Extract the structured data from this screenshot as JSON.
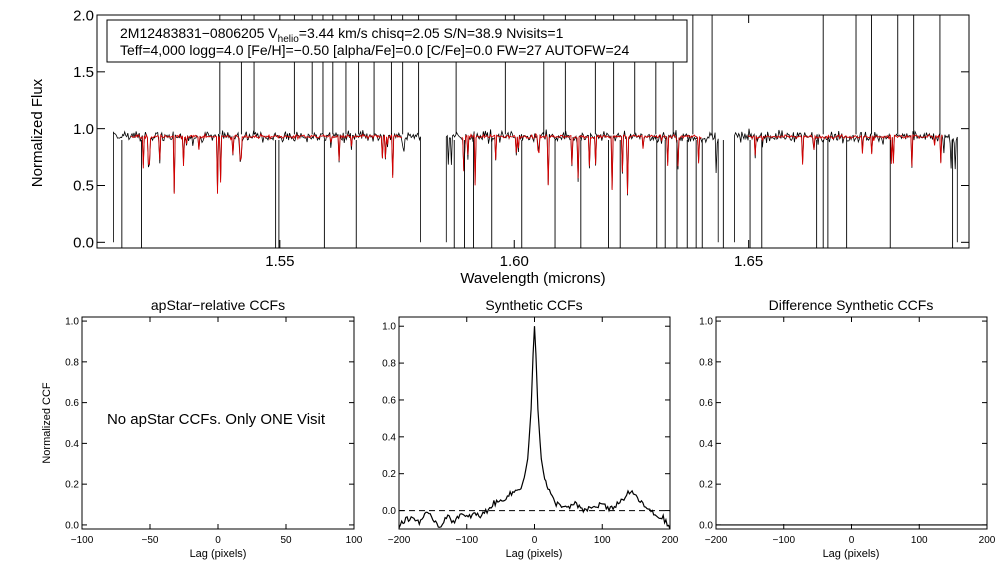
{
  "colors": {
    "observed": "#000000",
    "model": "#d40000",
    "axes": "#000000",
    "background": "#ffffff"
  },
  "chart_data": [
    {
      "type": "line",
      "id": "spectrum",
      "ylabel": "Normalized Flux",
      "xlabel": "Wavelength (microns)",
      "xlim": [
        1.511,
        1.697
      ],
      "ylim": [
        -0.05,
        2.0
      ],
      "x_ticks": [
        "1.55",
        "1.60",
        "1.65"
      ],
      "x_tick_values": [
        1.55,
        1.6,
        1.65
      ],
      "y_ticks": [
        "0.0",
        "0.5",
        "1.0",
        "1.5",
        "2.0"
      ],
      "y_tick_values": [
        0.0,
        0.5,
        1.0,
        1.5,
        2.0
      ],
      "annotation": {
        "line1_prefix": "2M12483831−0806205  V",
        "line1_subscript": "helio",
        "line1_suffix": "=3.44 km/s  chisq=2.05  S/N=38.9  Nvisits=1",
        "line2": "Teff=4,000 logg=4.0 [Fe/H]=−0.50 [alpha/Fe]=0.0 [C/Fe]=0.0 FW=27 AUTOFW=24"
      },
      "chips": [
        [
          1.5145,
          1.58
        ],
        [
          1.5855,
          1.6435
        ],
        [
          1.647,
          1.6945
        ]
      ],
      "continuum": 0.93,
      "series": [
        {
          "name": "observed",
          "noise": 0.045,
          "line_density": 0.05
        },
        {
          "name": "model",
          "noise": 0.015,
          "line_density": 0.05
        }
      ],
      "spikes": [
        1.5372,
        1.5418,
        1.5445,
        1.5531,
        1.5569,
        1.5592,
        1.5613,
        1.5641,
        1.5668,
        1.5701,
        1.5738,
        1.5762,
        1.5796,
        1.5876,
        1.5981,
        1.6063,
        1.6109,
        1.6173,
        1.6212,
        1.6257,
        1.6302,
        1.6339,
        1.6381,
        1.6422,
        1.6659,
        1.6729,
        1.6762,
        1.6818,
        1.6852,
        1.6908
      ],
      "deep_lines": [
        1.5163,
        1.5205,
        1.5491,
        1.5498,
        1.5595,
        1.5663,
        1.5872,
        1.5894,
        1.5913,
        1.5952,
        1.6016,
        1.6087,
        1.6142,
        1.6201,
        1.6226,
        1.6304,
        1.6322,
        1.6347,
        1.6369,
        1.6388,
        1.6401,
        1.6446,
        1.6503,
        1.6528,
        1.6645,
        1.6659,
        1.6669,
        1.6709,
        1.6802,
        1.6935
      ]
    },
    {
      "type": "line",
      "id": "apstar_ccf",
      "title": "apStar−relative CCFs",
      "xlabel": "Lag (pixels)",
      "ylabel": "Normalized CCF",
      "xlim": [
        -100,
        100
      ],
      "ylim": [
        -0.02,
        1.02
      ],
      "x_ticks": [
        "−100",
        "−50",
        "0",
        "50",
        "100"
      ],
      "x_tick_values": [
        -100,
        -50,
        0,
        50,
        100
      ],
      "y_ticks": [
        "0.0",
        "0.2",
        "0.4",
        "0.6",
        "0.8",
        "1.0"
      ],
      "y_tick_values": [
        0.0,
        0.2,
        0.4,
        0.6,
        0.8,
        1.0
      ],
      "message": "No apStar CCFs.  Only ONE Visit",
      "series": []
    },
    {
      "type": "line",
      "id": "synthetic_ccf",
      "title": "Synthetic CCFs",
      "xlabel": "Lag (pixels)",
      "xlim": [
        -200,
        200
      ],
      "ylim": [
        -0.1,
        1.05
      ],
      "x_ticks": [
        "−200",
        "−100",
        "0",
        "100",
        "200"
      ],
      "x_tick_values": [
        -200,
        -100,
        0,
        100,
        200
      ],
      "y_ticks": [
        "0.0",
        "0.2",
        "0.4",
        "0.6",
        "0.8",
        "1.0"
      ],
      "y_tick_values": [
        0.0,
        0.2,
        0.4,
        0.6,
        0.8,
        1.0
      ],
      "reference_line": {
        "y": 0.0,
        "style": "dashed"
      },
      "series": [
        {
          "name": "ccf",
          "x": [
            -200,
            -190,
            -180,
            -170,
            -160,
            -150,
            -140,
            -130,
            -120,
            -110,
            -100,
            -90,
            -80,
            -70,
            -60,
            -50,
            -40,
            -30,
            -20,
            -15,
            -10,
            -5,
            -2,
            0,
            2,
            5,
            10,
            15,
            20,
            30,
            40,
            50,
            60,
            70,
            80,
            90,
            100,
            110,
            120,
            130,
            140,
            150,
            160,
            170,
            180,
            190,
            200
          ],
          "y": [
            -0.08,
            -0.05,
            -0.04,
            -0.06,
            -0.02,
            -0.04,
            -0.09,
            -0.03,
            -0.06,
            -0.02,
            -0.04,
            -0.02,
            -0.03,
            0.0,
            0.04,
            0.05,
            0.08,
            0.1,
            0.13,
            0.18,
            0.28,
            0.55,
            0.85,
            1.0,
            0.85,
            0.55,
            0.28,
            0.17,
            0.12,
            0.04,
            0.03,
            0.01,
            0.04,
            0.0,
            0.01,
            0.02,
            0.04,
            0.0,
            0.03,
            0.06,
            0.1,
            0.08,
            0.03,
            0.0,
            -0.03,
            -0.04,
            -0.1
          ]
        }
      ]
    },
    {
      "type": "line",
      "id": "difference_ccf",
      "title": "Difference Synthetic CCFs",
      "xlabel": "Lag (pixels)",
      "xlim": [
        -200,
        200
      ],
      "ylim": [
        -0.02,
        1.02
      ],
      "x_ticks": [
        "−200",
        "−100",
        "0",
        "100",
        "200"
      ],
      "x_tick_values": [
        -200,
        -100,
        0,
        100,
        200
      ],
      "y_ticks": [
        "0.0",
        "0.2",
        "0.4",
        "0.6",
        "0.8",
        "1.0"
      ],
      "y_tick_values": [
        0.0,
        0.2,
        0.4,
        0.6,
        0.8,
        1.0
      ],
      "series": [
        {
          "name": "difference",
          "x": [
            -200,
            200
          ],
          "y": [
            0.0,
            0.0
          ]
        }
      ]
    }
  ]
}
